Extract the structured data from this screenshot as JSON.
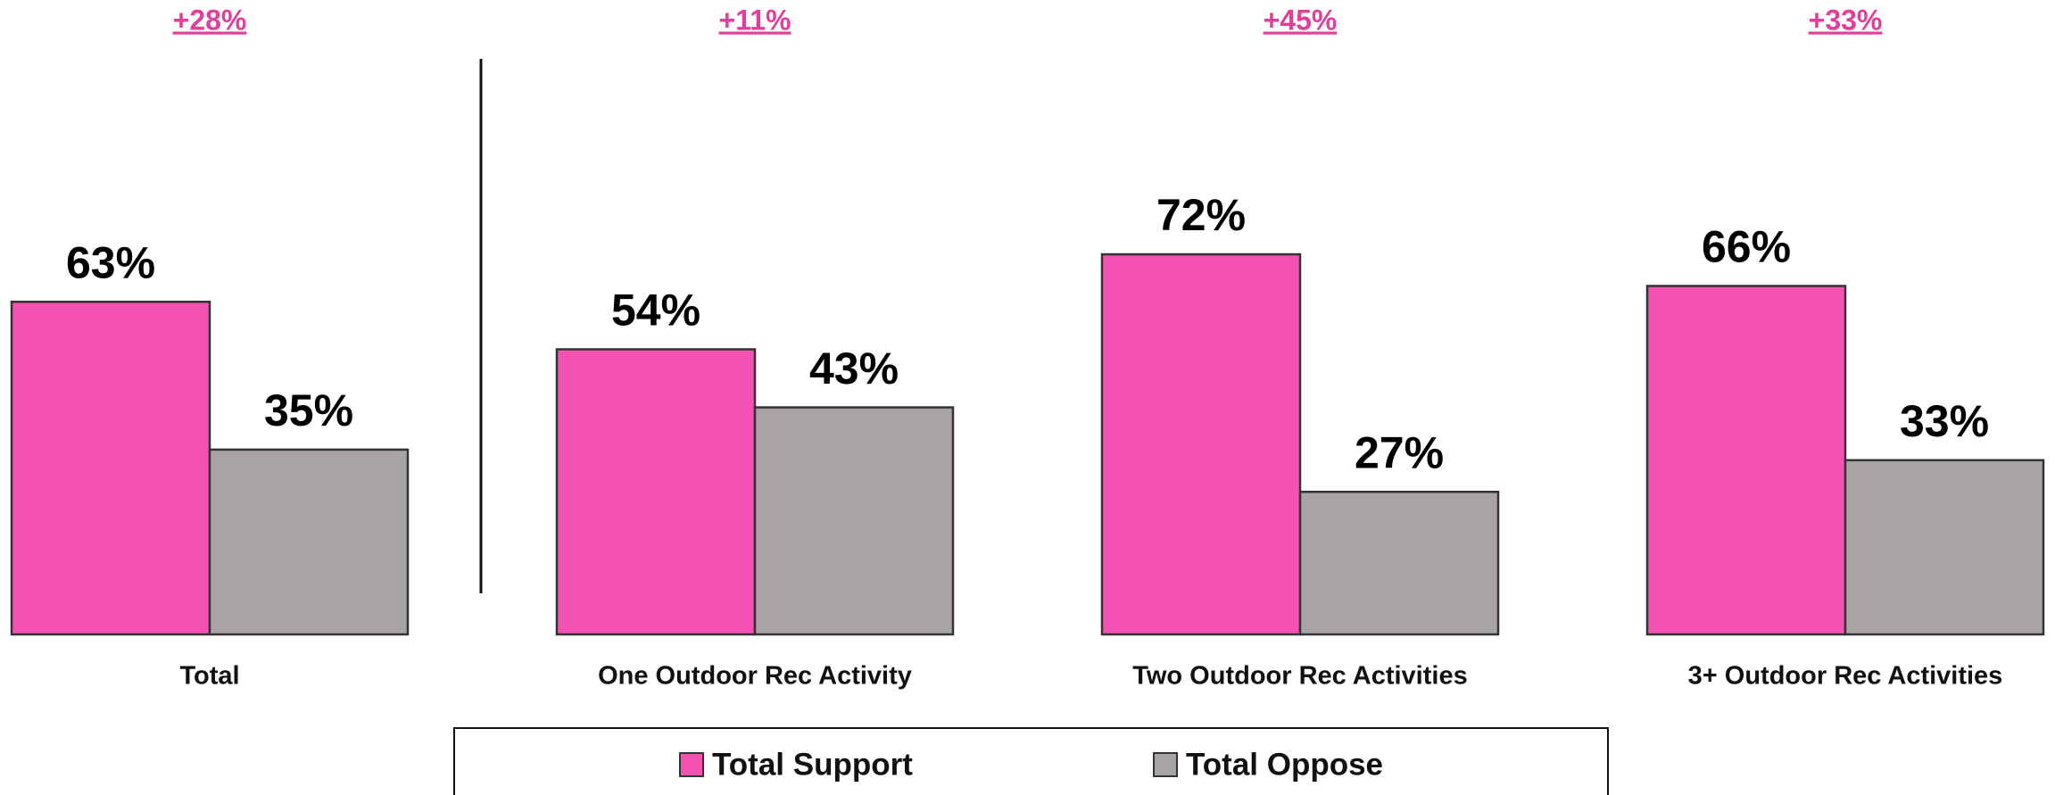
{
  "chart_data": {
    "type": "bar",
    "categories": [
      "Total",
      "One Outdoor Rec Activity",
      "Two Outdoor Rec Activities",
      "3+ Outdoor Rec Activities"
    ],
    "series": [
      {
        "name": "Total Support",
        "color": "#f452b2",
        "values": [
          63,
          54,
          72,
          66
        ],
        "value_labels": [
          "63%",
          "54%",
          "72%",
          "66%"
        ]
      },
      {
        "name": "Total Oppose",
        "color": "#a8a4a4",
        "values": [
          35,
          43,
          27,
          33
        ],
        "value_labels": [
          "35%",
          "43%",
          "27%",
          "33%"
        ]
      }
    ],
    "annotations": [
      "+28%",
      "+11%",
      "+45%",
      "+33%"
    ],
    "annotation_color": "#e0409a"
  }
}
